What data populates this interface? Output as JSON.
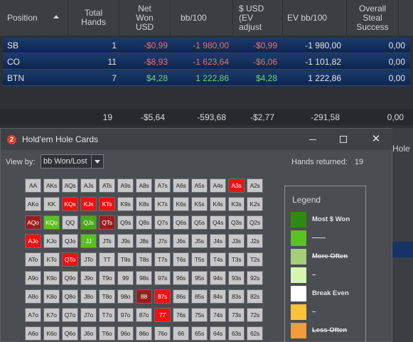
{
  "stats_table": {
    "headers": {
      "position": "Position",
      "total_hands": [
        "Total",
        "Hands"
      ],
      "net_won": [
        "Net",
        "Won",
        "USD"
      ],
      "bb100": "bb/100",
      "usd_ev": [
        "$ USD",
        "(EV",
        "adjust"
      ],
      "ev_bb100": "EV bb/100",
      "steal": [
        "Overall",
        "Steal",
        "Success"
      ]
    },
    "rows": [
      {
        "position": "SB",
        "hands": "1",
        "net_won": "-$0,99",
        "bb100": "-1 980,00",
        "usd_ev": "-$0,99",
        "ev_bb100": "-1 980,00",
        "steal": "0,00"
      },
      {
        "position": "CO",
        "hands": "11",
        "net_won": "-$8,93",
        "bb100": "-1 623,64",
        "usd_ev": "-$6,06",
        "ev_bb100": "-1 101,82",
        "steal": "0,00"
      },
      {
        "position": "BTN",
        "hands": "7",
        "net_won": "$4,28",
        "bb100": "1 222,86",
        "usd_ev": "$4,28",
        "ev_bb100": "1 222,86",
        "steal": "0,00"
      }
    ],
    "totals": {
      "hands": "19",
      "net_won": "-$5,64",
      "bb100": "-593,68",
      "usd_ev": "-$2,77",
      "ev_bb100": "-291,58",
      "steal": "0,00"
    }
  },
  "hole_cards_window": {
    "icon_text": "2",
    "title": "Hold'em Hole Cards",
    "view_by_label": "View by:",
    "view_by_value": "bb Won/Lost",
    "hands_returned_label": "Hands returned:",
    "hands_returned_value": "19",
    "grid": [
      [
        "AA",
        "AKs",
        "AQs",
        "AJs",
        "ATs",
        "A9s",
        "A8s",
        "A7s",
        "A6s",
        "A5s",
        "A4s",
        "A3s",
        "A2s"
      ],
      [
        "AKo",
        "KK",
        "KQs",
        "KJs",
        "KTs",
        "K9s",
        "K8s",
        "K7s",
        "K6s",
        "K5s",
        "K4s",
        "K3s",
        "K2s"
      ],
      [
        "AQo",
        "KQo",
        "QQ",
        "QJs",
        "QTs",
        "Q9s",
        "Q8s",
        "Q7s",
        "Q6s",
        "Q5s",
        "Q4s",
        "Q3s",
        "Q2s"
      ],
      [
        "AJo",
        "KJo",
        "QJo",
        "JJ",
        "JTs",
        "J9s",
        "J8s",
        "J7s",
        "J6s",
        "J5s",
        "J4s",
        "J3s",
        "J2s"
      ],
      [
        "ATo",
        "KTo",
        "QTo",
        "JTo",
        "TT",
        "T9s",
        "T8s",
        "T7s",
        "T6s",
        "T5s",
        "T4s",
        "T3s",
        "T2s"
      ],
      [
        "A9o",
        "K9o",
        "Q9o",
        "J9o",
        "T9o",
        "99",
        "98s",
        "97s",
        "96s",
        "95s",
        "94s",
        "93s",
        "92s"
      ],
      [
        "A8o",
        "K8o",
        "Q8o",
        "J8o",
        "T8o",
        "98o",
        "88",
        "87s",
        "86s",
        "85s",
        "84s",
        "83s",
        "82s"
      ],
      [
        "A7o",
        "K7o",
        "Q7o",
        "J7o",
        "T7o",
        "97o",
        "87o",
        "77",
        "76s",
        "75s",
        "74s",
        "73s",
        "72s"
      ],
      [
        "A6o",
        "K6o",
        "Q6o",
        "J6o",
        "T6o",
        "96o",
        "86o",
        "76o",
        "66",
        "65s",
        "64s",
        "63s",
        "62s"
      ]
    ],
    "highlights": {
      "A3s": "red",
      "KQs": "red",
      "KJs": "red",
      "KTs": "red",
      "AQo": "darkred",
      "KQo": "green",
      "QJs": "midgreen",
      "QTs": "darkred",
      "AJo": "red",
      "JJ": "green",
      "QTo": "red",
      "88": "darkred",
      "87s": "red",
      "77": "red"
    },
    "legend": {
      "title": "Legend",
      "items": [
        {
          "label": "Most $ Won",
          "color": "#2e8b12",
          "strike": false
        },
        {
          "label": "——",
          "color": "#5ac21e",
          "strike": false
        },
        {
          "label": "More Often",
          "color": "#a3cf7a",
          "strike": true
        },
        {
          "label": "–",
          "color": "#d8f5b0",
          "strike": false
        },
        {
          "label": "Break Even",
          "color": "#ffffff",
          "strike": false
        },
        {
          "label": "–",
          "color": "#f7c33a",
          "strike": false
        },
        {
          "label": "Less Often",
          "color": "#f39a3a",
          "strike": true
        },
        {
          "label": "",
          "color": "#ee1111",
          "strike": false
        }
      ]
    }
  },
  "side_tab": {
    "label": "Hole"
  },
  "colors": {
    "negative": "#f26d6d",
    "positive": "#6ed36e",
    "row_blue": "#1b3a6b"
  }
}
